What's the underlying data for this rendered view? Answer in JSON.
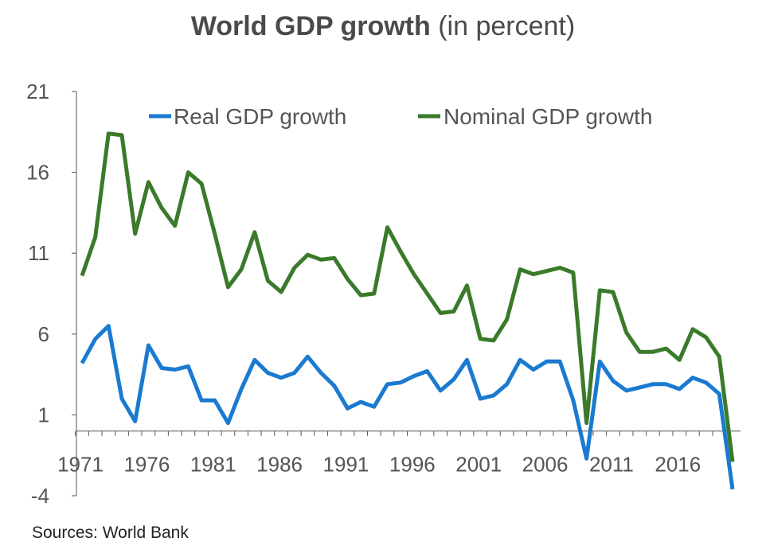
{
  "title": {
    "bold": "World GDP growth",
    "rest": " (in percent)"
  },
  "source": "Sources: World Bank",
  "chart_data": {
    "type": "line",
    "title": "World GDP growth (in percent)",
    "xlabel": "",
    "ylabel": "",
    "ylim": [
      -4,
      21
    ],
    "yticks": [
      21,
      16,
      11,
      6,
      1,
      -4
    ],
    "xlim": [
      1970,
      2020
    ],
    "xticks": [
      1971,
      1976,
      1981,
      1986,
      1991,
      1996,
      2001,
      2006,
      2011,
      2016
    ],
    "legend_position": "top",
    "x": [
      1971,
      1972,
      1973,
      1974,
      1975,
      1976,
      1977,
      1978,
      1979,
      1980,
      1981,
      1982,
      1983,
      1984,
      1985,
      1986,
      1987,
      1988,
      1989,
      1990,
      1991,
      1992,
      1993,
      1994,
      1995,
      1996,
      1997,
      1998,
      1999,
      2000,
      2001,
      2002,
      2003,
      2004,
      2005,
      2006,
      2007,
      2008,
      2009,
      2010,
      2011,
      2012,
      2013,
      2014,
      2015,
      2016,
      2017,
      2018,
      2019,
      2020
    ],
    "series": [
      {
        "name": "Real GDP growth",
        "color": "#1a7ad0",
        "values": [
          4.2,
          5.7,
          6.5,
          2.0,
          0.6,
          5.3,
          3.9,
          3.8,
          4.0,
          1.9,
          1.9,
          0.5,
          2.6,
          4.4,
          3.6,
          3.3,
          3.6,
          4.6,
          3.6,
          2.8,
          1.4,
          1.8,
          1.5,
          2.9,
          3.0,
          3.4,
          3.7,
          2.5,
          3.2,
          4.4,
          2.0,
          2.2,
          2.9,
          4.4,
          3.8,
          4.3,
          4.3,
          1.9,
          -1.7,
          4.3,
          3.1,
          2.5,
          2.7,
          2.9,
          2.9,
          2.6,
          3.3,
          3.0,
          2.3,
          -3.6
        ],
        "end_label": ""
      },
      {
        "name": "Nominal GDP growth",
        "color": "#3a7a2a",
        "values": [
          9.6,
          12.0,
          18.4,
          18.3,
          12.2,
          15.4,
          13.8,
          12.7,
          16.0,
          15.3,
          12.2,
          8.9,
          10.0,
          12.3,
          9.3,
          8.6,
          10.1,
          10.9,
          10.6,
          10.7,
          9.4,
          8.4,
          8.5,
          12.6,
          11.1,
          9.7,
          8.5,
          7.3,
          7.4,
          9.0,
          5.7,
          5.6,
          6.9,
          10.0,
          9.7,
          9.9,
          10.1,
          9.8,
          0.5,
          8.7,
          8.6,
          6.1,
          4.9,
          4.9,
          5.1,
          4.4,
          6.3,
          5.8,
          4.6,
          -1.9
        ],
        "end_label": ""
      }
    ]
  }
}
